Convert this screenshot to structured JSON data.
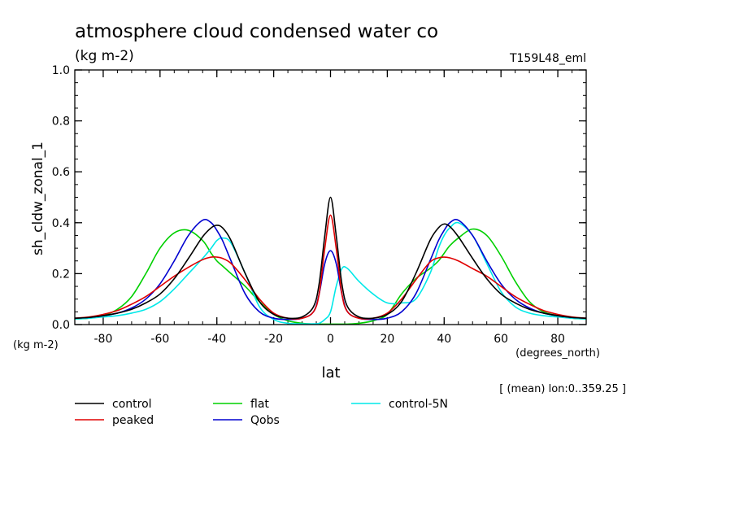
{
  "chart_data": {
    "type": "line",
    "title": "atmosphere cloud condensed water co",
    "subtitle": "(kg m-2)",
    "run_label": "T159L48_eml",
    "ylabel": "sh_cldw_zonal_1",
    "y_unit": "(kg m-2)",
    "xlabel": "lat",
    "x_unit": "(degrees_north)",
    "footnote": "[ (mean) lon:0..359.25 ]",
    "xlim": [
      -90,
      90
    ],
    "ylim": [
      0,
      1.0
    ],
    "xticks": [
      -80,
      -60,
      -40,
      -20,
      0,
      20,
      40,
      60,
      80
    ],
    "yticks": [
      0.0,
      0.2,
      0.4,
      0.6,
      0.8,
      1.0
    ],
    "xtick_labels": [
      "-80",
      "-60",
      "-40",
      "-20",
      "0",
      "20",
      "40",
      "60",
      "80"
    ],
    "ytick_labels": [
      "0.0",
      "0.2",
      "0.4",
      "0.6",
      "0.8",
      "1.0"
    ],
    "grid": false,
    "legend_position": "bottom",
    "x": [
      -90,
      -85,
      -80,
      -75,
      -70,
      -65,
      -60,
      -55,
      -50,
      -45,
      -42,
      -40,
      -38,
      -35,
      -30,
      -25,
      -20,
      -15,
      -10,
      -6,
      -4,
      -2,
      0,
      2,
      4,
      6,
      10,
      15,
      20,
      25,
      30,
      35,
      38,
      40,
      42,
      45,
      50,
      55,
      60,
      65,
      70,
      75,
      80,
      85,
      90
    ],
    "series": [
      {
        "name": "control",
        "color": "#000000",
        "values": [
          0.025,
          0.028,
          0.035,
          0.045,
          0.06,
          0.085,
          0.12,
          0.18,
          0.26,
          0.345,
          0.38,
          0.39,
          0.38,
          0.33,
          0.2,
          0.09,
          0.04,
          0.025,
          0.03,
          0.07,
          0.16,
          0.35,
          0.5,
          0.35,
          0.16,
          0.07,
          0.03,
          0.025,
          0.04,
          0.09,
          0.2,
          0.33,
          0.38,
          0.395,
          0.385,
          0.345,
          0.26,
          0.18,
          0.12,
          0.085,
          0.06,
          0.045,
          0.035,
          0.028,
          0.025
        ]
      },
      {
        "name": "peaked",
        "color": "#e00000",
        "values": [
          0.025,
          0.03,
          0.04,
          0.055,
          0.08,
          0.11,
          0.15,
          0.19,
          0.225,
          0.255,
          0.265,
          0.265,
          0.26,
          0.24,
          0.175,
          0.1,
          0.045,
          0.025,
          0.025,
          0.05,
          0.12,
          0.3,
          0.43,
          0.3,
          0.12,
          0.05,
          0.025,
          0.025,
          0.045,
          0.1,
          0.175,
          0.245,
          0.262,
          0.265,
          0.262,
          0.25,
          0.22,
          0.19,
          0.15,
          0.11,
          0.08,
          0.055,
          0.04,
          0.03,
          0.025
        ]
      },
      {
        "name": "flat",
        "color": "#00d000",
        "values": [
          0.022,
          0.025,
          0.035,
          0.06,
          0.11,
          0.2,
          0.3,
          0.36,
          0.37,
          0.33,
          0.28,
          0.25,
          0.23,
          0.2,
          0.15,
          0.09,
          0.04,
          0.015,
          0.005,
          0.002,
          0.002,
          0.002,
          0.002,
          0.002,
          0.002,
          0.002,
          0.005,
          0.015,
          0.04,
          0.12,
          0.18,
          0.22,
          0.25,
          0.28,
          0.31,
          0.34,
          0.375,
          0.35,
          0.27,
          0.17,
          0.09,
          0.05,
          0.035,
          0.025,
          0.022
        ]
      },
      {
        "name": "Qobs",
        "color": "#0000d0",
        "values": [
          0.025,
          0.028,
          0.035,
          0.045,
          0.065,
          0.1,
          0.16,
          0.25,
          0.35,
          0.41,
          0.4,
          0.37,
          0.33,
          0.25,
          0.12,
          0.05,
          0.025,
          0.02,
          0.025,
          0.05,
          0.12,
          0.24,
          0.29,
          0.24,
          0.12,
          0.05,
          0.025,
          0.02,
          0.025,
          0.05,
          0.12,
          0.25,
          0.33,
          0.37,
          0.4,
          0.41,
          0.35,
          0.25,
          0.16,
          0.1,
          0.065,
          0.045,
          0.035,
          0.028,
          0.025
        ]
      },
      {
        "name": "control-5N",
        "color": "#00e8e8",
        "values": [
          0.022,
          0.025,
          0.03,
          0.035,
          0.045,
          0.06,
          0.09,
          0.14,
          0.2,
          0.26,
          0.3,
          0.33,
          0.34,
          0.32,
          0.2,
          0.07,
          0.02,
          0.005,
          0.003,
          0.003,
          0.005,
          0.02,
          0.05,
          0.15,
          0.22,
          0.22,
          0.17,
          0.12,
          0.085,
          0.085,
          0.1,
          0.2,
          0.3,
          0.35,
          0.38,
          0.4,
          0.35,
          0.24,
          0.13,
          0.07,
          0.045,
          0.035,
          0.03,
          0.025,
          0.022
        ]
      }
    ]
  }
}
